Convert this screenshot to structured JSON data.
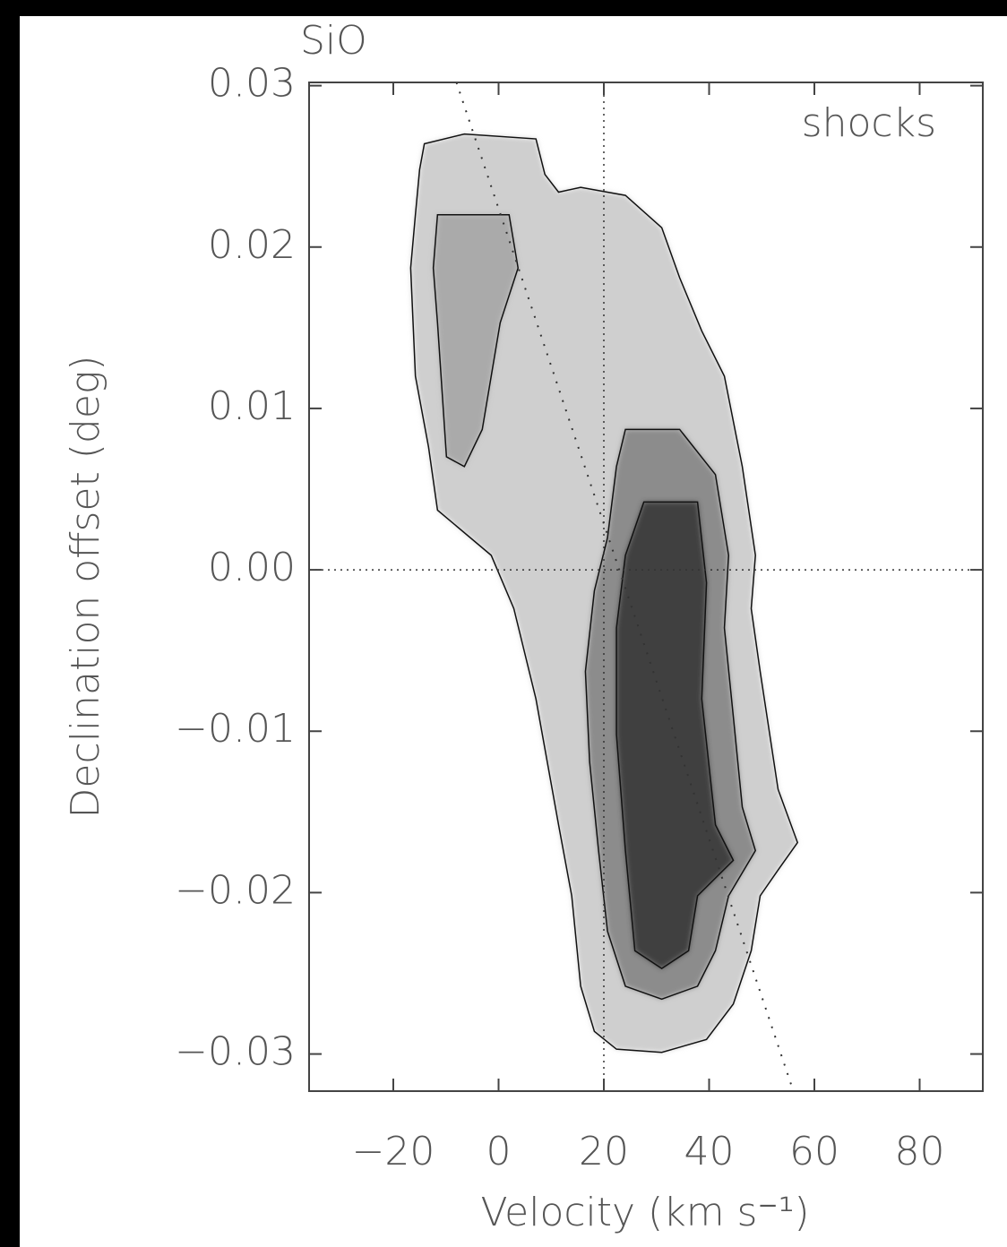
{
  "chart_data": {
    "type": "contour",
    "title": "SiO",
    "annotation": "shocks",
    "x_label": "Velocity (km s⁻¹)",
    "y_label": "Declination offset (deg)",
    "xlim": [
      -36,
      92
    ],
    "ylim": [
      -0.0323,
      0.0302
    ],
    "xticks": [
      {
        "value": -20,
        "label": "−20"
      },
      0,
      20,
      40,
      60,
      80
    ],
    "yticks": [
      {
        "value": -0.03,
        "label": "−0.03"
      },
      {
        "value": -0.02,
        "label": "−0.02"
      },
      {
        "value": -0.01,
        "label": "−0.01"
      },
      {
        "value": 0,
        "label": "0.00"
      },
      0.01,
      0.02,
      0.03
    ],
    "reference_x": 20,
    "reference_y": 0,
    "fit_line": {
      "x": [
        -8,
        56
      ],
      "y": [
        0.0302,
        -0.0323
      ]
    },
    "contours": [
      {
        "color": "#cfcfcf",
        "x": [
          -14.1,
          -6.5,
          7.1,
          8.8,
          11.4,
          15.6,
          24.1,
          31.0,
          34.4,
          38.6,
          42.9,
          46.3,
          48.8,
          48.0,
          49.7,
          53.1,
          56.8,
          53.1,
          49.7,
          48.0,
          44.6,
          39.5,
          31.0,
          22.4,
          18.2,
          15.6,
          13.9,
          11.4,
          7.1,
          2.9,
          -1.4,
          -11.6,
          -13.3,
          -15.8,
          -16.7,
          -15.8,
          -15.0
        ],
        "y": [
          0.0264,
          0.027,
          0.0267,
          0.0245,
          0.0234,
          0.0237,
          0.0232,
          0.0212,
          0.0181,
          0.0148,
          0.012,
          0.0064,
          0.0009,
          -0.0024,
          -0.0063,
          -0.0136,
          -0.0169,
          -0.0186,
          -0.0202,
          -0.0236,
          -0.0269,
          -0.0291,
          -0.0299,
          -0.0297,
          -0.0286,
          -0.0258,
          -0.0202,
          -0.0158,
          -0.008,
          -0.0024,
          0.0009,
          0.0037,
          0.0076,
          0.012,
          0.0187,
          0.022,
          0.0248
        ]
      },
      {
        "color": "#aaaaaa",
        "x": [
          -11.6,
          2.0,
          3.7,
          0.3,
          -1.4,
          -3.1,
          -6.5,
          -9.9,
          -10.7,
          -11.6,
          -12.4
        ],
        "y": [
          0.022,
          0.022,
          0.0187,
          0.0153,
          0.012,
          0.0087,
          0.0064,
          0.007,
          0.0109,
          0.0153,
          0.0187
        ]
      },
      {
        "color": "#8c8c8c",
        "x": [
          24.1,
          34.4,
          41.2,
          43.7,
          42.9,
          44.6,
          46.3,
          48.8,
          43.7,
          41.2,
          37.8,
          31.0,
          24.1,
          20.7,
          19.0,
          17.3,
          16.5,
          18.2,
          20.7,
          22.4
        ],
        "y": [
          0.0087,
          0.0087,
          0.0059,
          0.0009,
          -0.0036,
          -0.0091,
          -0.0147,
          -0.0174,
          -0.0202,
          -0.0236,
          -0.0258,
          -0.0266,
          -0.0258,
          -0.0224,
          -0.0174,
          -0.0119,
          -0.0063,
          -0.0013,
          0.002,
          0.0064
        ]
      },
      {
        "color": "#404040",
        "x": [
          27.6,
          37.8,
          39.5,
          38.6,
          41.2,
          44.6,
          37.8,
          36.1,
          31.0,
          25.9,
          24.1,
          22.4,
          22.4,
          24.1
        ],
        "y": [
          0.0042,
          0.0042,
          -0.0008,
          -0.008,
          -0.0158,
          -0.018,
          -0.0202,
          -0.0236,
          -0.0247,
          -0.0236,
          -0.0174,
          -0.0102,
          -0.0036,
          0.0009
        ]
      }
    ]
  }
}
